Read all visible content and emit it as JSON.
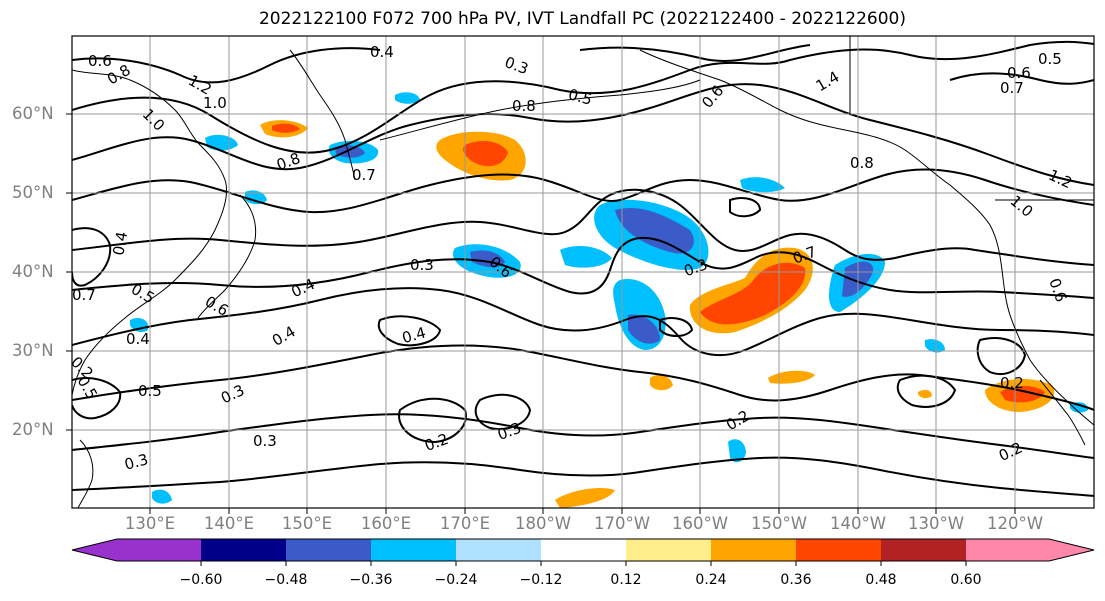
{
  "title": "2022122100 F072 700 hPa PV, IVT Landfall PC (2022122400 - 2022122600)",
  "lat_labels": [
    "60°N",
    "50°N",
    "40°N",
    "30°N",
    "20°N"
  ],
  "lon_labels": [
    "130°E",
    "140°E",
    "150°E",
    "160°E",
    "170°E",
    "180°W",
    "170°W",
    "160°W",
    "150°W",
    "140°W",
    "130°W",
    "120°W"
  ],
  "contour_labels": [
    "0.6",
    "0.8",
    "1.2",
    "1.0",
    "1.0",
    "0.4",
    "0.3",
    "0.5",
    "0.8",
    "0.6",
    "1.4",
    "1.2",
    "0.8",
    "1.0",
    "0.5",
    "0.6",
    "0.7",
    "0.8",
    "0.7",
    "0.3",
    "0.4",
    "0.4",
    "0.6",
    "0.3",
    "0.7",
    "0.4",
    "0.3",
    "0.5",
    "0.3",
    "0.2",
    "0.3",
    "0.2",
    "0.3",
    "0.2",
    "0.2",
    "0.2",
    "0.5",
    "0.6",
    "0.4",
    "0.7",
    "0.5",
    "0.4",
    "0.6",
    "0.8"
  ],
  "colorbar": {
    "colors": [
      "#9932cc",
      "#00008b",
      "#3a5bc8",
      "#00bfff",
      "#b0e0ff",
      "#ffffff",
      "#ffec8b",
      "#ffa500",
      "#ff4500",
      "#b22222",
      "#ff88aa"
    ],
    "tick_labels": [
      "−0.60",
      "−0.48",
      "−0.36",
      "−0.24",
      "−0.12",
      "0.12",
      "0.24",
      "0.36",
      "0.48",
      "0.60"
    ]
  }
}
